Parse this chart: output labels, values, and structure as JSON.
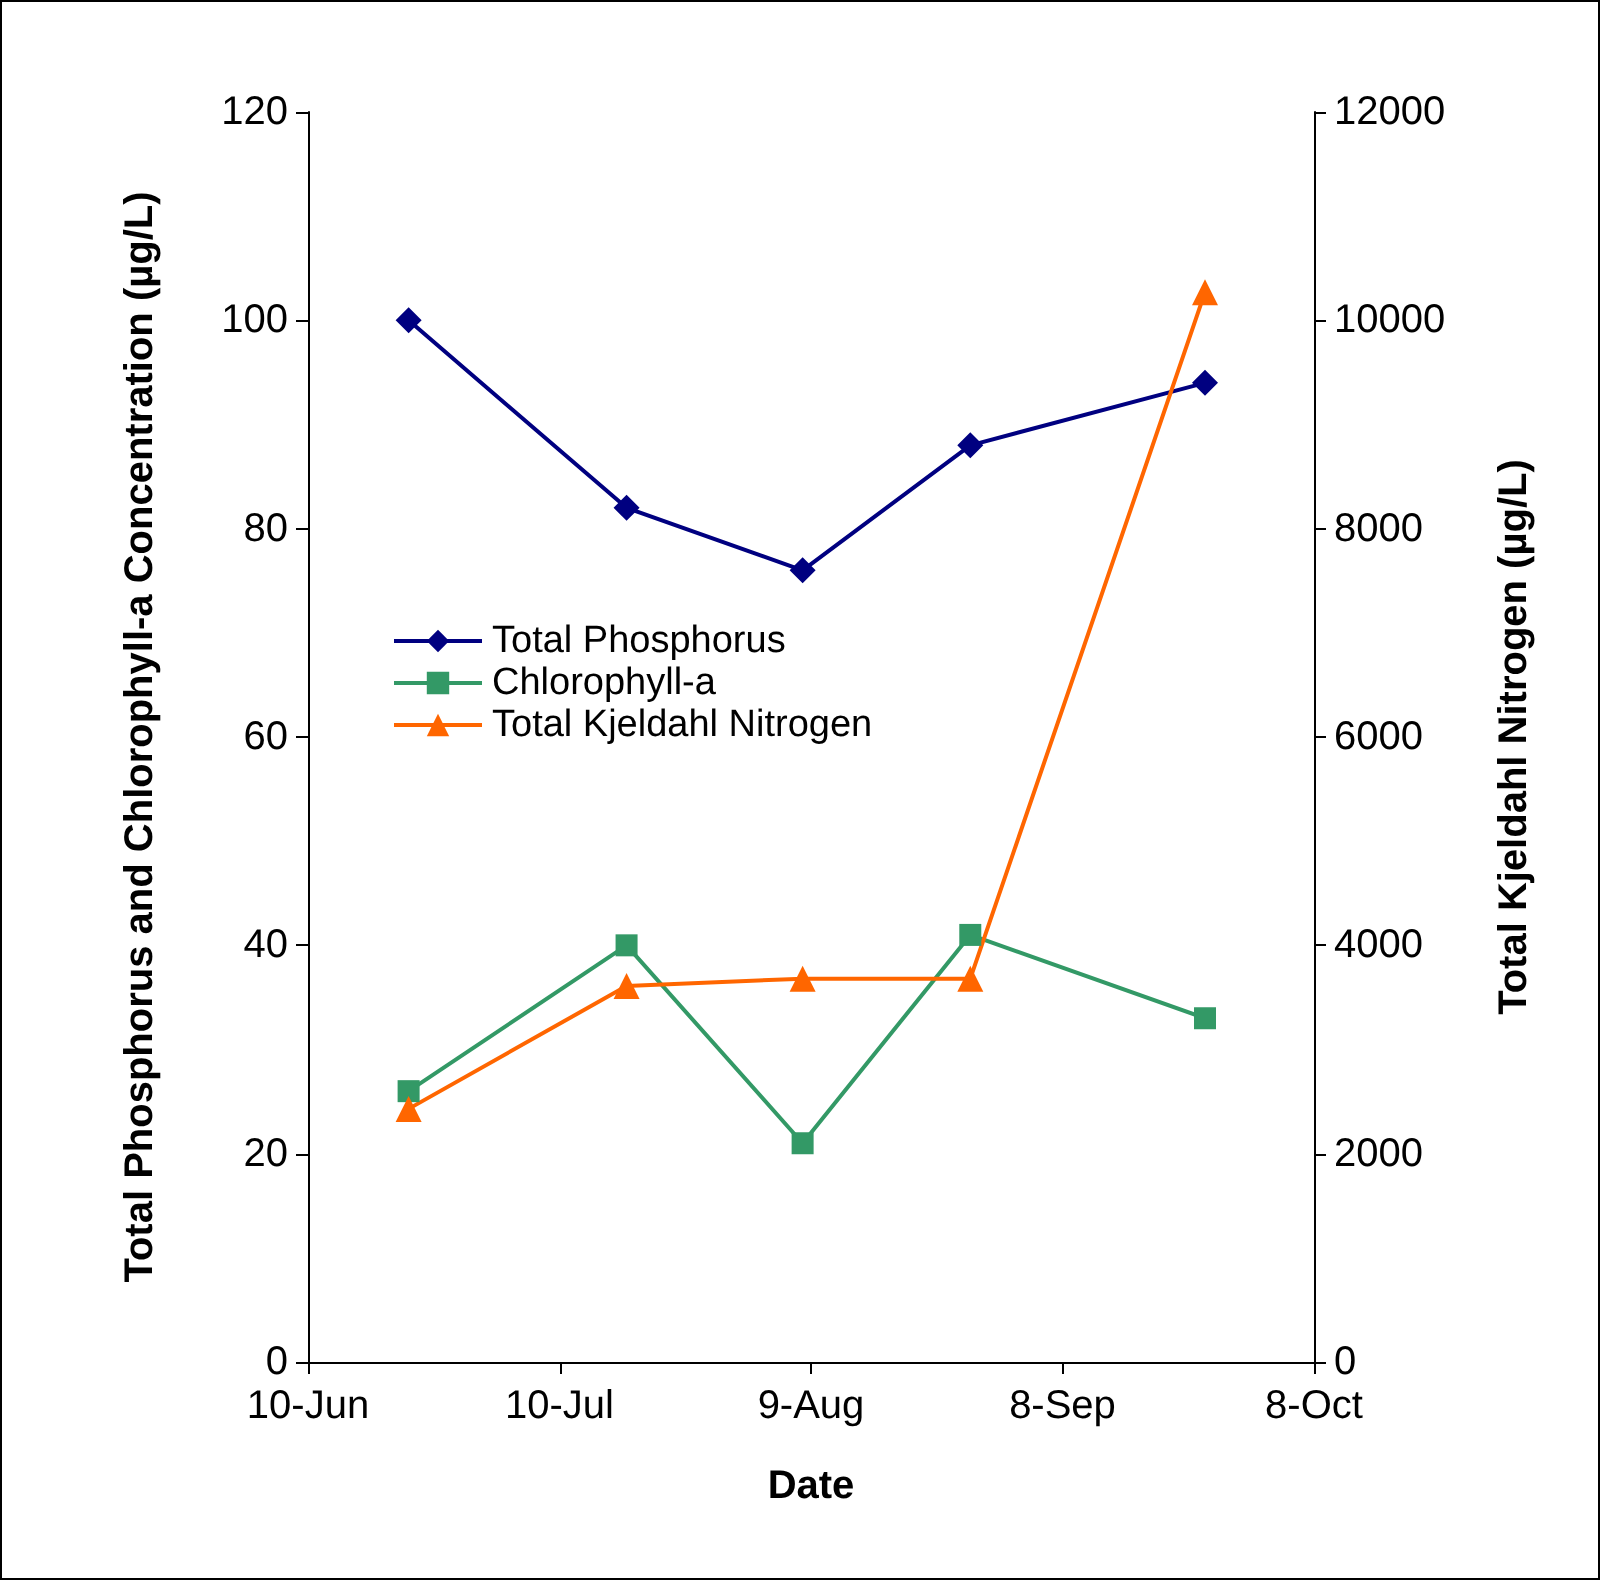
{
  "chart_data": {
    "type": "line",
    "xlabel": "Date",
    "ylabel": "Total Phosphorus and Chlorophyll-a Concentration (µg/L)",
    "y2label": "Total Kjeldahl Nitrogen (µg/L)",
    "x": [
      "--06-22",
      "--07-18",
      "--08-08",
      "--08-28",
      "--09-25"
    ],
    "xlim": [
      "--06-10",
      "--10-08"
    ],
    "xticks": [
      {
        "value": "--06-10",
        "label": "10-Jun"
      },
      {
        "value": "--07-10",
        "label": "10-Jul"
      },
      {
        "value": "--08-09",
        "label": "9-Aug"
      },
      {
        "value": "--09-08",
        "label": "8-Sep"
      },
      {
        "value": "--10-08",
        "label": "8-Oct"
      }
    ],
    "ylim": [
      0,
      120
    ],
    "yticks": [
      0,
      20,
      40,
      60,
      80,
      100,
      120
    ],
    "y2lim": [
      0,
      12000
    ],
    "y2ticks": [
      0,
      2000,
      4000,
      6000,
      8000,
      10000,
      12000
    ],
    "legend": "left",
    "grid": false,
    "series": [
      {
        "name": "Total Phosphorus",
        "color": "#000080",
        "marker": "diamond",
        "values": [
          100,
          82,
          76,
          88,
          94
        ]
      },
      {
        "name": "Chlorophyll-a",
        "color": "#339966",
        "marker": "square",
        "values": [
          26,
          40,
          21,
          41,
          33
        ]
      },
      {
        "name": "Total Kjeldahl Nitrogen",
        "color": "#ff6600",
        "marker": "triangle",
        "axis": "y2",
        "values": [
          2430,
          3610,
          3680,
          3680,
          10270
        ]
      }
    ]
  }
}
